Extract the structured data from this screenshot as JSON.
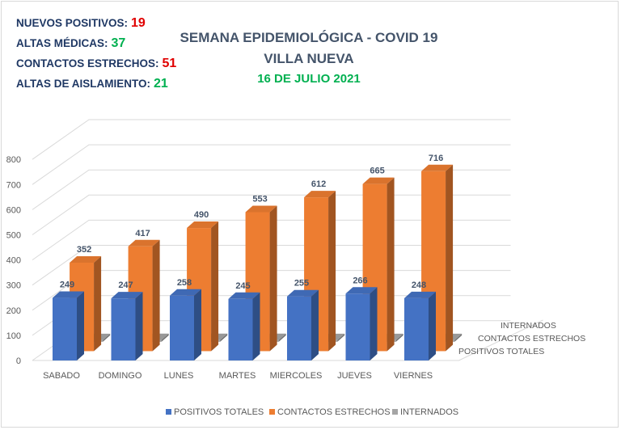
{
  "stats": [
    {
      "label": "NUEVOS POSITIVOS:",
      "value": "19",
      "color": "#e00000"
    },
    {
      "label": "ALTAS MÉDICAS:",
      "value": "37",
      "color": "#00b050"
    },
    {
      "label": "CONTACTOS ESTRECHOS:",
      "value": "51",
      "color": "#e00000"
    },
    {
      "label": "ALTAS DE AISLAMIENTO:",
      "value": "21",
      "color": "#00b050"
    }
  ],
  "chart_data": {
    "type": "bar",
    "title": "SEMANA EPIDEMIOLÓGICA - COVID 19",
    "subtitle": "VILLA NUEVA",
    "date": "16 DE JULIO 2021",
    "categories": [
      "SABADO",
      "DOMINGO",
      "LUNES",
      "MARTES",
      "MIERCOLES",
      "JUEVES",
      "VIERNES"
    ],
    "series": [
      {
        "name": "POSITIVOS TOTALES",
        "values": [
          249,
          247,
          258,
          245,
          255,
          266,
          248
        ],
        "color": "#4472c4"
      },
      {
        "name": "CONTACTOS ESTRECHOS",
        "values": [
          352,
          417,
          490,
          553,
          612,
          665,
          716
        ],
        "color": "#ed7d31"
      },
      {
        "name": "INTERNADOS",
        "values": [
          3,
          7,
          7,
          7,
          6,
          4,
          4
        ],
        "color": "#a5a5a5"
      }
    ],
    "y_ticks": [
      "0",
      "100",
      "200",
      "300",
      "400",
      "500",
      "600",
      "700",
      "800"
    ],
    "ylim": [
      0,
      800
    ],
    "depth_labels": [
      "INTERNADOS",
      "CONTACTOS ESTRECHOS",
      "POSITIVOS TOTALES"
    ],
    "legend_position": "bottom",
    "grid": true
  }
}
